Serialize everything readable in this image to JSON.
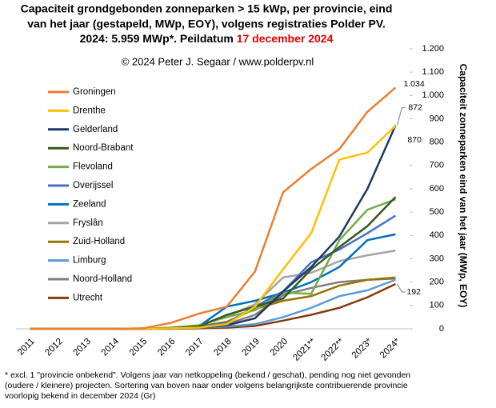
{
  "chart_data": {
    "type": "line",
    "title": [
      "Capaciteit grondgebonden  zonneparken > 15 kWp, per provincie, eind",
      "van het jaar (gestapeld, MWp, EOY), volgens registraties Polder PV.",
      "2024: 5.959 MWp*. Peildatum "
    ],
    "title_highlight": "17 december 2024",
    "title_highlight_color": "#e00000",
    "annotation": "© 2024 Peter J. Segaar / www.polderpv.nl",
    "y_label": "Capaciteit zonneparken eind van het jaar (MWp, EOY)",
    "footnote": [
      "* excl. 1 \"provincie onbekend\". Volgens jaar van netkoppeling (bekend / geschat), pending nog niet gevonden",
      "(oudere / kleinere) projecten. Sortering van boven naar onder volgens belangrijkste contribuerende provincie",
      "voorlopig bekend in december 2024 (Gr)"
    ],
    "categories": [
      "2011",
      "2012",
      "2013",
      "2014",
      "2015",
      "2016",
      "2017",
      "2018",
      "2019",
      "2020",
      "2021**",
      "2022**",
      "2023*",
      "2024*"
    ],
    "ylim": [
      0,
      1200
    ],
    "yticks": [
      0,
      100,
      200,
      300,
      400,
      500,
      600,
      700,
      800,
      900,
      {
        "value": 1000,
        "label": "1.000"
      },
      {
        "value": 1100,
        "label": "1.100"
      },
      {
        "value": 1200,
        "label": "1.200"
      }
    ],
    "grid": false,
    "legend": "upper left",
    "series": [
      {
        "name": "Groningen",
        "color": "#ed7d31",
        "values": [
          0,
          0,
          0,
          0,
          2,
          25,
          65,
          95,
          245,
          585,
          685,
          770,
          930,
          1034
        ],
        "value_labels": [
          null,
          null,
          null,
          null,
          null,
          null,
          null,
          null,
          null,
          null,
          null,
          null,
          null,
          "1.034"
        ]
      },
      {
        "name": "Drenthe",
        "color": "#ffc000",
        "values": [
          0,
          0,
          0,
          0,
          0,
          2,
          5,
          20,
          95,
          255,
          410,
          725,
          755,
          870
        ],
        "value_labels": [
          null,
          null,
          null,
          null,
          null,
          null,
          null,
          null,
          null,
          null,
          null,
          null,
          null,
          "870"
        ]
      },
      {
        "name": "Gelderland",
        "color": "#1f3864",
        "values": [
          0,
          0,
          0,
          0,
          0,
          2,
          5,
          15,
          45,
          160,
          265,
          395,
          600,
          872
        ],
        "value_labels": [
          null,
          null,
          null,
          null,
          null,
          null,
          null,
          null,
          null,
          null,
          null,
          null,
          null,
          "872"
        ]
      },
      {
        "name": "Noord-Brabant",
        "color": "#375623",
        "values": [
          0,
          0,
          0,
          0,
          0,
          3,
          10,
          60,
          95,
          130,
          255,
          350,
          440,
          565
        ]
      },
      {
        "name": "Flevoland",
        "color": "#70ad47",
        "values": [
          0,
          0,
          0,
          0,
          0,
          5,
          15,
          50,
          80,
          155,
          150,
          380,
          510,
          555
        ]
      },
      {
        "name": "Overijssel",
        "color": "#4472c4",
        "values": [
          0,
          0,
          0,
          0,
          0,
          2,
          8,
          25,
          95,
          160,
          285,
          340,
          410,
          485
        ]
      },
      {
        "name": "Zeeland",
        "color": "#0070c0",
        "values": [
          0,
          0,
          0,
          0,
          0,
          2,
          10,
          95,
          120,
          155,
          200,
          265,
          380,
          405
        ]
      },
      {
        "name": "Fryslân",
        "color": "#a5a5a5",
        "values": [
          0,
          0,
          0,
          0,
          0,
          3,
          15,
          55,
          105,
          220,
          240,
          290,
          315,
          335
        ]
      },
      {
        "name": "Zuid-Holland",
        "color": "#997300",
        "values": [
          0,
          0,
          0,
          0,
          0,
          2,
          10,
          30,
          85,
          120,
          140,
          185,
          210,
          220
        ]
      },
      {
        "name": "Limburg",
        "color": "#5b9bd5",
        "values": [
          0,
          0,
          0,
          0,
          0,
          1,
          5,
          10,
          20,
          50,
          90,
          140,
          165,
          210
        ]
      },
      {
        "name": "Noord-Holland",
        "color": "#7f7f7f",
        "values": [
          0,
          0,
          0,
          0,
          0,
          2,
          5,
          20,
          60,
          145,
          175,
          200,
          210,
          215
        ]
      },
      {
        "name": "Utrecht",
        "color": "#843c0c",
        "values": [
          0,
          0,
          0,
          0,
          0,
          0,
          2,
          5,
          12,
          35,
          60,
          90,
          135,
          192
        ],
        "value_labels": [
          null,
          null,
          null,
          null,
          null,
          null,
          null,
          null,
          null,
          null,
          null,
          null,
          null,
          "192"
        ]
      }
    ]
  }
}
